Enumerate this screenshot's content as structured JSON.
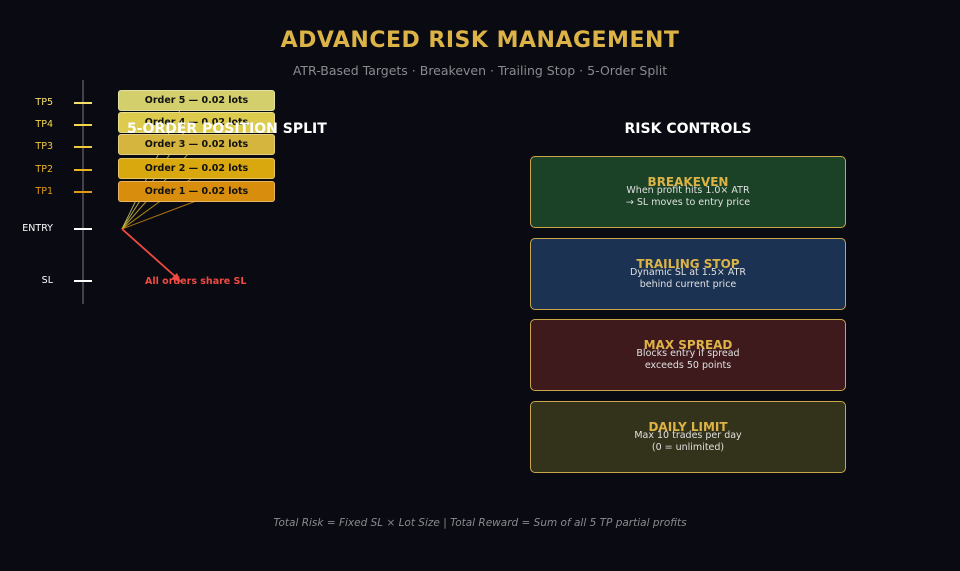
{
  "header": {
    "title": "ADVANCED RISK MANAGEMENT",
    "subtitle": "ATR-Based Targets · Breakeven · Trailing Stop · 5-Order Split"
  },
  "position_split": {
    "heading": "5-ORDER POSITION SPLIT",
    "levels": [
      {
        "label": "TP5",
        "color": "#f5e06a"
      },
      {
        "label": "TP4",
        "color": "#f5d84a"
      },
      {
        "label": "TP3",
        "color": "#f0c93a"
      },
      {
        "label": "TP2",
        "color": "#eab420"
      },
      {
        "label": "TP1",
        "color": "#e39a12"
      },
      {
        "label": "ENTRY",
        "color": "#ffffff"
      },
      {
        "label": "SL",
        "color": "#ffffff"
      }
    ],
    "orders": [
      {
        "label": "Order 5 — 0.02 lots",
        "color": "#d2cf6c"
      },
      {
        "label": "Order 4 — 0.02 lots",
        "color": "#dccb4c"
      },
      {
        "label": "Order 3 — 0.02 lots",
        "color": "#d6b53e"
      },
      {
        "label": "Order 2 — 0.02 lots",
        "color": "#d9a80e"
      },
      {
        "label": "Order 1 — 0.02 lots",
        "color": "#d98d0c"
      }
    ],
    "sl_note": "All orders share SL",
    "sl_color": "#f04a42"
  },
  "risk_controls": {
    "heading": "RISK CONTROLS",
    "cards": [
      {
        "title": "BREAKEVEN",
        "line1": "When profit hits 1.0× ATR",
        "line2": "→ SL moves to entry price",
        "bg": "#1b4226"
      },
      {
        "title": "TRAILING STOP",
        "line1": "Dynamic SL at 1.5× ATR",
        "line2": "behind current price",
        "bg": "#1b3252"
      },
      {
        "title": "MAX SPREAD",
        "line1": "Blocks entry if spread",
        "line2": "exceeds 50 points",
        "bg": "#3e1a1d"
      },
      {
        "title": "DAILY LIMIT",
        "line1": "Max 10 trades per day",
        "line2": "(0 = unlimited)",
        "bg": "#33321a"
      }
    ]
  },
  "footer": "Total Risk = Fixed SL × Lot Size  |  Total Reward = Sum of all 5 TP partial profits"
}
